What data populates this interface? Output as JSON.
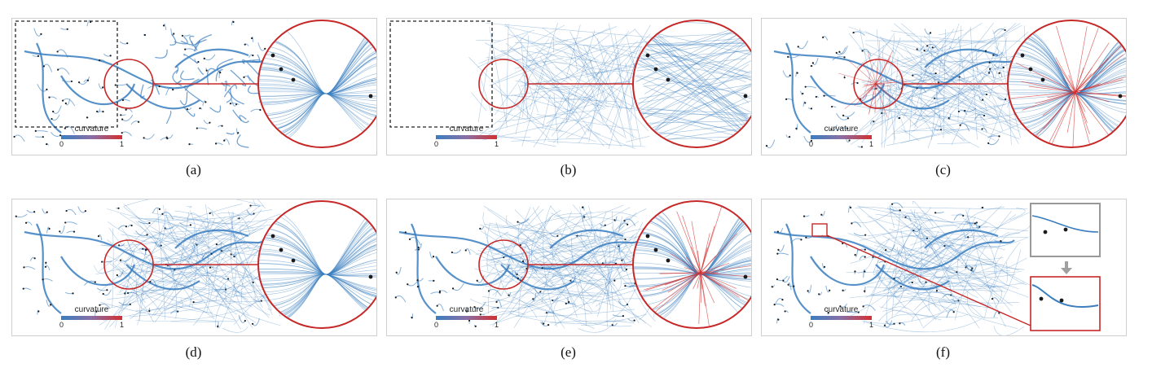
{
  "legend": {
    "title": "curvature",
    "min": "0",
    "max": "1",
    "colors": [
      "#3a7ebf",
      "#8a6fa5",
      "#d32f2f"
    ]
  },
  "panels": [
    {
      "caption": "(a)",
      "variant": "tree"
    },
    {
      "caption": "(b)",
      "variant": "straight"
    },
    {
      "caption": "(c)",
      "variant": "red-star"
    },
    {
      "caption": "(d)",
      "variant": "bundled"
    },
    {
      "caption": "(e)",
      "variant": "bundled-red"
    },
    {
      "caption": "(f)",
      "variant": "inset-zoom"
    }
  ],
  "colors": {
    "edge": "#3a7ebf",
    "highlight": "#d32f2f",
    "frame": "#c62828",
    "node": "#1b1b1b"
  }
}
